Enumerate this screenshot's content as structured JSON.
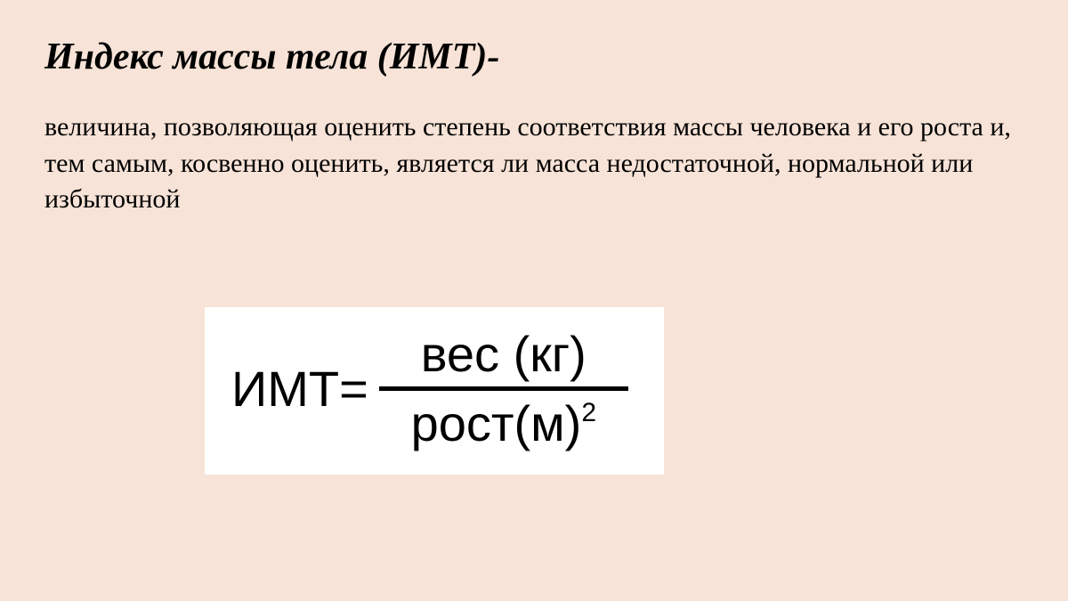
{
  "title": "Индекс массы тела (ИМТ)-",
  "description": "величина, позволяющая оценить степень соответствия массы человека и его роста и, тем самым, косвенно оценить, является ли масса недостаточной, нормальной или избыточной",
  "formula": {
    "left": "ИМТ=",
    "numerator": "вес (кг)",
    "denominator_base": "рост(м)",
    "denominator_exp": "2"
  },
  "colors": {
    "background": "#f7e3d7",
    "formula_bg": "#ffffff",
    "text": "#000000"
  },
  "typography": {
    "title_fontsize": 42,
    "title_style": "bold italic",
    "description_fontsize": 30,
    "formula_fontsize": 56,
    "formula_font": "Arial",
    "body_font": "Georgia/Times"
  }
}
